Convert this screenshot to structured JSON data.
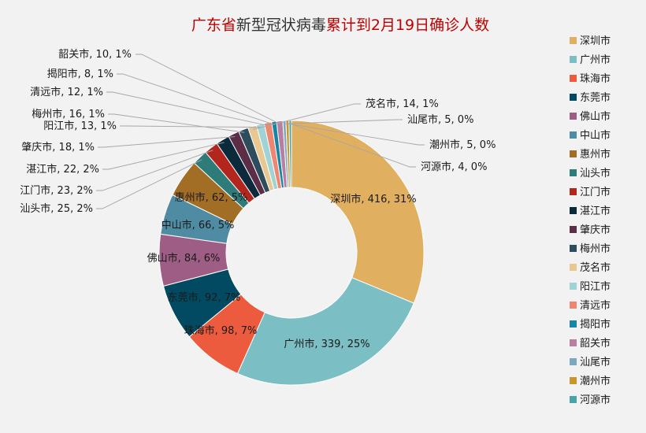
{
  "chart_data": {
    "type": "pie",
    "donut": true,
    "title_parts": [
      "广东省",
      "新型冠状病毒",
      "累计到2月19日确诊人数"
    ],
    "legend_position": "right",
    "slices": [
      {
        "name": "深圳市",
        "value": 416,
        "pct": "31%",
        "color": "#e1af60"
      },
      {
        "name": "广州市",
        "value": 339,
        "pct": "25%",
        "color": "#7bbfc4"
      },
      {
        "name": "珠海市",
        "value": 98,
        "pct": "7%",
        "color": "#ed5b3f"
      },
      {
        "name": "东莞市",
        "value": 92,
        "pct": "7%",
        "color": "#024a61"
      },
      {
        "name": "佛山市",
        "value": 84,
        "pct": "6%",
        "color": "#9e5d84"
      },
      {
        "name": "中山市",
        "value": 66,
        "pct": "5%",
        "color": "#4f8ba2"
      },
      {
        "name": "惠州市",
        "value": 62,
        "pct": "5%",
        "color": "#a26d24"
      },
      {
        "name": "汕头市",
        "value": 25,
        "pct": "2%",
        "color": "#2d7c7a"
      },
      {
        "name": "江门市",
        "value": 23,
        "pct": "2%",
        "color": "#b3261e"
      },
      {
        "name": "湛江市",
        "value": 22,
        "pct": "2%",
        "color": "#0b2a3c"
      },
      {
        "name": "肇庆市",
        "value": 18,
        "pct": "1%",
        "color": "#5b2d47"
      },
      {
        "name": "梅州市",
        "value": 16,
        "pct": "1%",
        "color": "#2d4d5c"
      },
      {
        "name": "茂名市",
        "value": 14,
        "pct": "1%",
        "color": "#e8c890"
      },
      {
        "name": "阳江市",
        "value": 13,
        "pct": "1%",
        "color": "#9fd3d6"
      },
      {
        "name": "清远市",
        "value": 12,
        "pct": "1%",
        "color": "#ef8670"
      },
      {
        "name": "揭阳市",
        "value": 8,
        "pct": "1%",
        "color": "#1686a7"
      },
      {
        "name": "韶关市",
        "value": 10,
        "pct": "1%",
        "color": "#b87fa2"
      },
      {
        "name": "汕尾市",
        "value": 5,
        "pct": "0%",
        "color": "#7ca9bd"
      },
      {
        "name": "潮州市",
        "value": 5,
        "pct": "0%",
        "color": "#c9962a"
      },
      {
        "name": "河源市",
        "value": 4,
        "pct": "0%",
        "color": "#4aa3a8"
      }
    ]
  }
}
